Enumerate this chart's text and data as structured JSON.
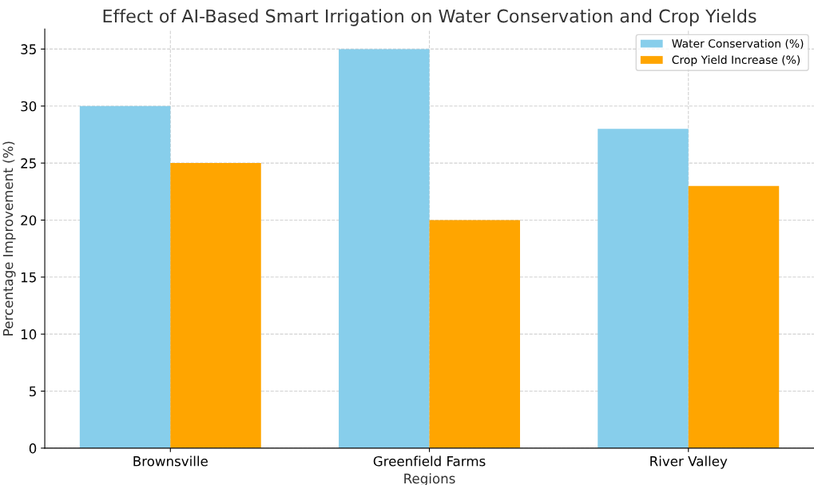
{
  "chart_data": {
    "type": "bar",
    "title": "Effect of AI-Based Smart Irrigation on Water Conservation and Crop Yields",
    "xlabel": "Regions",
    "ylabel": "Percentage Improvement (%)",
    "categories": [
      "Brownsville",
      "Greenfield Farms",
      "River Valley"
    ],
    "series": [
      {
        "name": "Water Conservation (%)",
        "color": "#87ceeb",
        "values": [
          30,
          35,
          28
        ]
      },
      {
        "name": "Crop Yield Increase (%)",
        "color": "#ffa500",
        "values": [
          25,
          20,
          23
        ]
      }
    ],
    "ylim": [
      0,
      36.75
    ],
    "yticks": [
      0,
      5,
      10,
      15,
      20,
      25,
      30,
      35
    ],
    "grid": true,
    "legend": "top right"
  }
}
